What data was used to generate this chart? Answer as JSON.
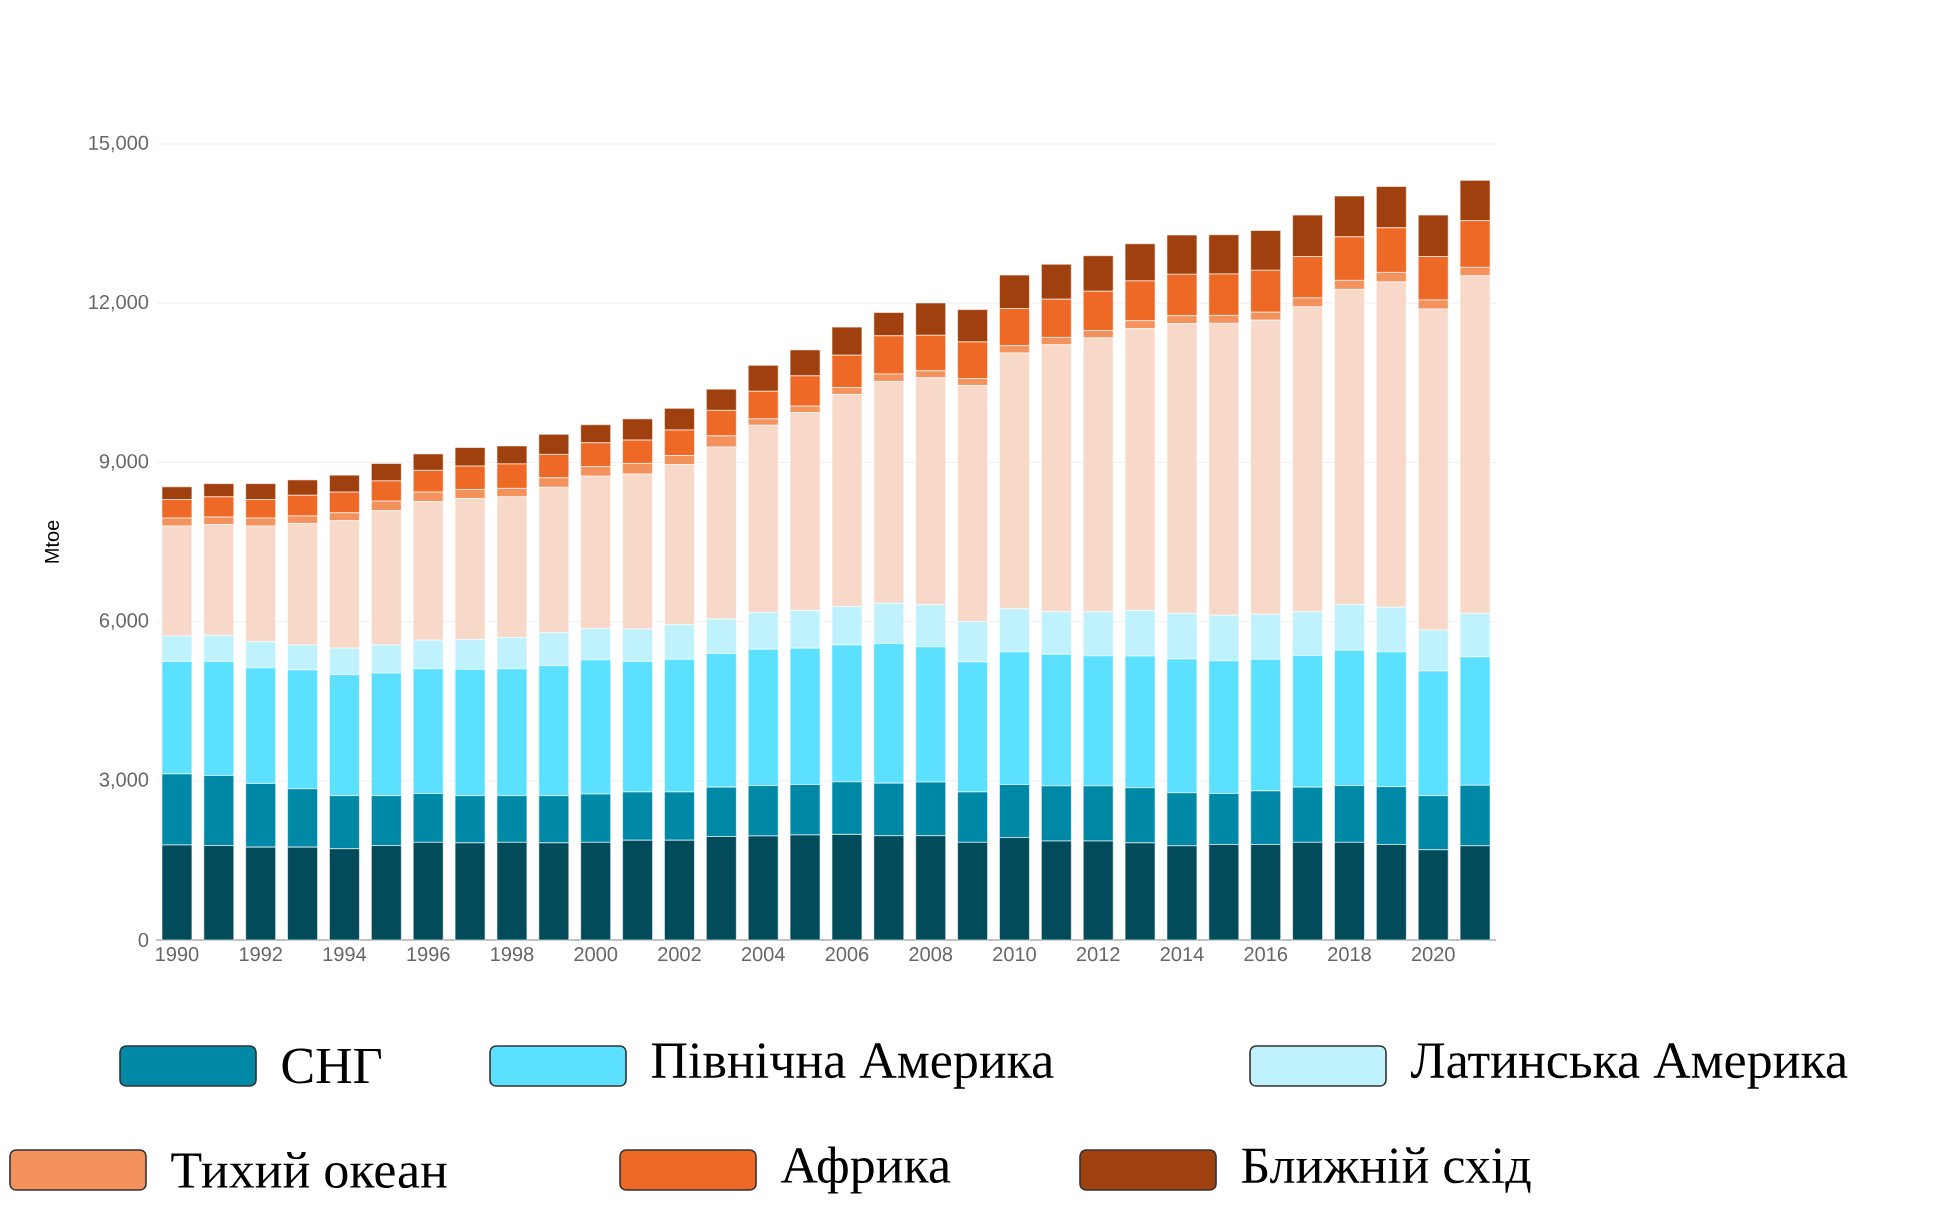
{
  "chart_data": {
    "type": "bar",
    "stacked": true,
    "ylabel": "Mtoe",
    "categories": [
      "1990",
      null,
      "1992",
      null,
      "1994",
      null,
      "1996",
      null,
      "1998",
      null,
      "2000",
      null,
      "2002",
      null,
      "2004",
      null,
      "2006",
      null,
      "2008",
      null,
      "2010",
      null,
      "2012",
      null,
      "2014",
      null,
      "2016",
      null,
      "2018",
      null,
      "2020",
      null
    ],
    "ylim": [
      0,
      15000
    ],
    "yticks": [
      {
        "value": 0,
        "label": "0"
      },
      {
        "value": 3000,
        "label": "3,000"
      },
      {
        "value": 6000,
        "label": "6,000"
      },
      {
        "value": 9000,
        "label": "9,000"
      },
      {
        "value": 12000,
        "label": "12,000"
      },
      {
        "value": 15000,
        "label": "15,000"
      }
    ],
    "grid": "y",
    "legend": "bottom",
    "series": [
      {
        "color": "#024b5a",
        "values": [
          1790,
          1780,
          1750,
          1750,
          1720,
          1780,
          1840,
          1830,
          1840,
          1830,
          1840,
          1880,
          1880,
          1950,
          1960,
          1980,
          1990,
          1965,
          1965,
          1840,
          1930,
          1865,
          1865,
          1830,
          1775,
          1800,
          1800,
          1840,
          1840,
          1800,
          1700,
          1775
        ]
      },
      {
        "name": "СНГ",
        "color": "#0089a7",
        "values": [
          1340,
          1320,
          1200,
          1100,
          1000,
          940,
          920,
          890,
          880,
          890,
          910,
          910,
          910,
          930,
          950,
          950,
          990,
          990,
          1010,
          950,
          1000,
          1040,
          1040,
          1040,
          1000,
          960,
          1010,
          1040,
          1070,
          1090,
          1020,
          1140
        ]
      },
      {
        "name": "Північна Америка",
        "color": "#5ce0ff",
        "values": [
          2120,
          2150,
          2180,
          2240,
          2280,
          2310,
          2350,
          2380,
          2390,
          2450,
          2530,
          2460,
          2500,
          2520,
          2570,
          2570,
          2580,
          2630,
          2550,
          2450,
          2500,
          2480,
          2450,
          2480,
          2520,
          2500,
          2480,
          2480,
          2550,
          2540,
          2350,
          2420
        ]
      },
      {
        "name": "Латинська Америка",
        "color": "#bff2fc",
        "values": [
          480,
          490,
          490,
          470,
          500,
          530,
          540,
          560,
          590,
          620,
          590,
          610,
          650,
          650,
          690,
          710,
          720,
          760,
          790,
          760,
          810,
          800,
          830,
          860,
          860,
          860,
          850,
          830,
          860,
          840,
          770,
          820
        ]
      },
      {
        "color": "#f8d9c9",
        "values": [
          2070,
          2090,
          2180,
          2290,
          2400,
          2530,
          2610,
          2660,
          2650,
          2740,
          2870,
          2920,
          3020,
          3240,
          3530,
          3730,
          4000,
          4180,
          4280,
          4450,
          4820,
          5030,
          5160,
          5310,
          5460,
          5500,
          5540,
          5740,
          5940,
          6130,
          6050,
          6360
        ]
      },
      {
        "name": "Тихий океан",
        "color": "#f4925e",
        "values": [
          150,
          140,
          150,
          140,
          150,
          180,
          180,
          170,
          160,
          180,
          180,
          200,
          170,
          210,
          120,
          120,
          130,
          140,
          130,
          130,
          140,
          140,
          140,
          150,
          150,
          150,
          150,
          170,
          170,
          180,
          170,
          160
        ]
      },
      {
        "name": "Африка",
        "color": "#ee6826",
        "values": [
          350,
          380,
          350,
          390,
          390,
          380,
          410,
          440,
          460,
          440,
          450,
          440,
          480,
          480,
          520,
          570,
          610,
          720,
          670,
          690,
          700,
          720,
          740,
          750,
          780,
          780,
          790,
          780,
          820,
          840,
          820,
          880
        ]
      },
      {
        "name": "Ближній схід",
        "color": "#a0400e",
        "values": [
          240,
          250,
          300,
          290,
          320,
          330,
          310,
          350,
          340,
          380,
          340,
          400,
          410,
          400,
          490,
          490,
          530,
          440,
          610,
          610,
          630,
          660,
          670,
          700,
          740,
          740,
          750,
          780,
          770,
          780,
          780,
          760
        ]
      }
    ]
  }
}
